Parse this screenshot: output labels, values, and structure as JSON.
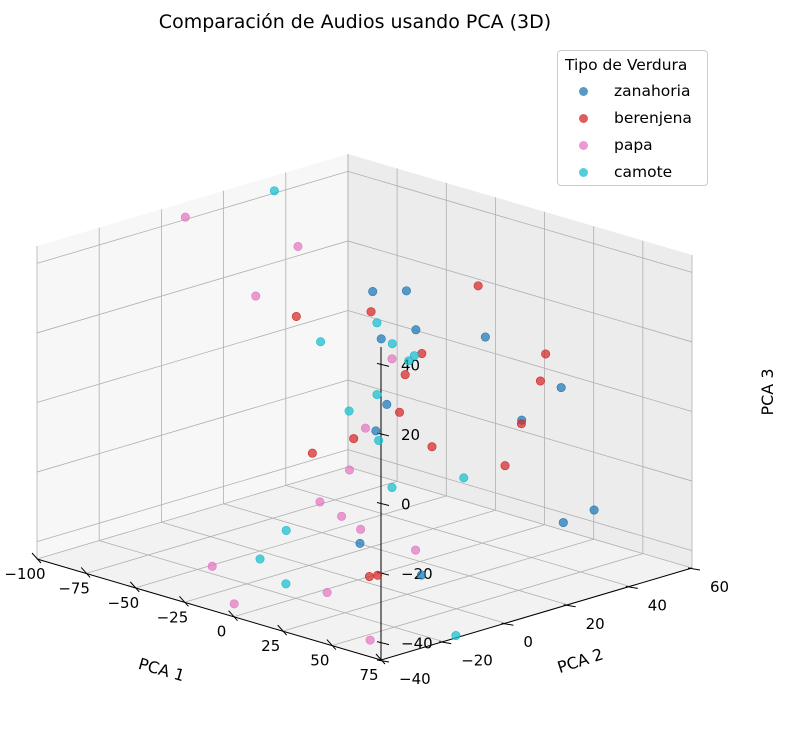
{
  "chart_data": {
    "type": "scatter",
    "projection": "3d",
    "title": "Comparación de Audios usando PCA (3D)",
    "xlabel": "PCA 1",
    "ylabel": "PCA 2",
    "zlabel": "PCA 3",
    "xlim": [
      -100,
      75
    ],
    "ylim": [
      -40,
      60
    ],
    "zlim": [
      -45,
      45
    ],
    "xticks": [
      "−100",
      "−75",
      "−50",
      "−25",
      "0",
      "25",
      "50",
      "75"
    ],
    "yticks": [
      "−40",
      "−20",
      "0",
      "20",
      "40",
      "60"
    ],
    "zticks": [
      "−40",
      "−20",
      "0",
      "20",
      "40"
    ],
    "grid": true,
    "legend": {
      "title": "Tipo de Verdura",
      "placement": "top-right"
    },
    "series": [
      {
        "name": "zanahoria",
        "color": "#1f77b4",
        "points": [
          [
            12,
            8,
            38
          ],
          [
            -2,
            6,
            36
          ],
          [
            30,
            22,
            24
          ],
          [
            -18,
            30,
            16
          ],
          [
            21,
            -4,
            10
          ],
          [
            48,
            35,
            9
          ],
          [
            39,
            28,
            0
          ],
          [
            17,
            -5,
            2
          ],
          [
            20,
            -12,
            -28
          ],
          [
            57,
            30,
            -27
          ],
          [
            60,
            38,
            -25
          ],
          [
            -12,
            28,
            -53
          ],
          [
            -4,
            10,
            21
          ]
        ]
      },
      {
        "name": "berenjena",
        "color": "#d62728",
        "points": [
          [
            -63,
            20,
            15
          ],
          [
            -6,
            8,
            29
          ],
          [
            20,
            26,
            36
          ],
          [
            -58,
            22,
            -24
          ],
          [
            4,
            18,
            16
          ],
          [
            24,
            0,
            18
          ],
          [
            48,
            30,
            20
          ],
          [
            58,
            22,
            16
          ],
          [
            42,
            26,
            0
          ],
          [
            59,
            10,
            -5
          ],
          [
            -20,
            26,
            -7
          ],
          [
            -18,
            10,
            -10
          ],
          [
            6,
            20,
            -11
          ],
          [
            10,
            0,
            -42
          ],
          [
            9,
            -2,
            -42
          ]
        ]
      },
      {
        "name": "papa",
        "color": "#e377c2",
        "points": [
          [
            -72,
            -10,
            50
          ],
          [
            -52,
            0,
            28
          ],
          [
            -78,
            30,
            30
          ],
          [
            -8,
            16,
            13
          ],
          [
            2,
            -4,
            -12
          ],
          [
            -12,
            10,
            -6
          ],
          [
            -32,
            8,
            -30
          ],
          [
            -2,
            -4,
            -26
          ],
          [
            4,
            16,
            -40
          ],
          [
            -44,
            -12,
            -56
          ],
          [
            -52,
            -14,
            -46
          ],
          [
            -60,
            28,
            -66
          ],
          [
            22,
            -10,
            -56
          ],
          [
            14,
            -8,
            -26
          ]
        ]
      },
      {
        "name": "camote",
        "color": "#17becf",
        "points": [
          [
            -90,
            30,
            44
          ],
          [
            -38,
            12,
            14
          ],
          [
            -22,
            20,
            20
          ],
          [
            -30,
            30,
            10
          ],
          [
            16,
            -4,
            12
          ],
          [
            16,
            8,
            20
          ],
          [
            10,
            10,
            17
          ],
          [
            38,
            10,
            -12
          ],
          [
            -52,
            30,
            -13
          ],
          [
            -46,
            6,
            -40
          ],
          [
            -34,
            -10,
            -42
          ],
          [
            -24,
            -8,
            -48
          ],
          [
            -8,
            16,
            -24
          ],
          [
            34,
            10,
            -58
          ],
          [
            20,
            -6,
            0
          ]
        ]
      }
    ]
  }
}
